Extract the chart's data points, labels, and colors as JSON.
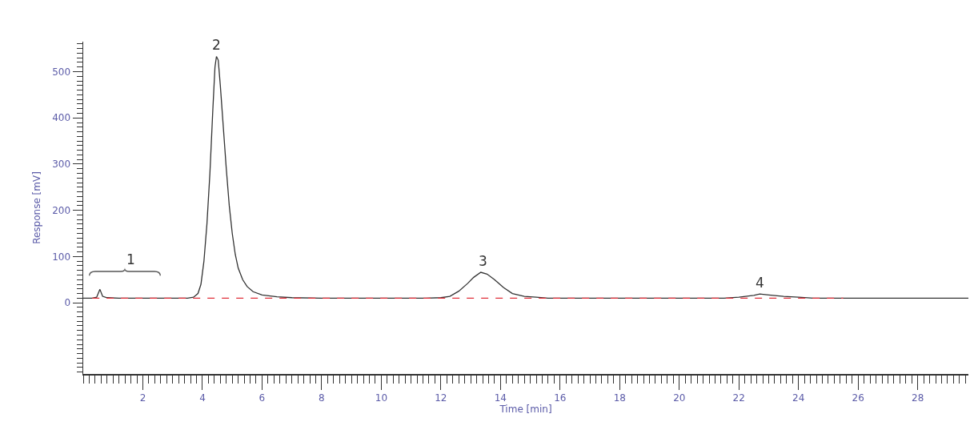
{
  "chart_data": {
    "type": "line",
    "xlabel": "Time [min]",
    "ylabel": "Response [mV]",
    "xlim": [
      0,
      29.7
    ],
    "ylim": [
      -154,
      565
    ],
    "xticks": [
      2,
      4,
      6,
      8,
      10,
      12,
      14,
      16,
      18,
      20,
      22,
      24,
      26,
      28
    ],
    "yticks": [
      0,
      100,
      200,
      300,
      400,
      500
    ],
    "marker": "none",
    "series": [
      {
        "color": "#333333",
        "line_style": "solid",
        "x": [
          0,
          0.3,
          0.45,
          0.56,
          0.65,
          0.8,
          1.2,
          3.0,
          3.5,
          3.7,
          3.85,
          3.95,
          4.05,
          4.15,
          4.25,
          4.35,
          4.42,
          4.47,
          4.53,
          4.6,
          4.7,
          4.8,
          4.9,
          5.0,
          5.1,
          5.2,
          5.35,
          5.5,
          5.7,
          6.0,
          6.5,
          7.0,
          8.0,
          11.5,
          12.0,
          12.3,
          12.6,
          12.9,
          13.1,
          13.34,
          13.55,
          13.8,
          14.1,
          14.4,
          14.8,
          15.2,
          15.6,
          21.5,
          22.0,
          22.5,
          22.7,
          23.0,
          23.5,
          24.0,
          24.5,
          29.7
        ],
        "values": [
          10,
          10,
          12,
          29,
          14,
          11,
          10,
          10,
          10,
          12,
          20,
          40,
          90,
          170,
          280,
          420,
          510,
          533,
          525,
          470,
          380,
          290,
          210,
          150,
          105,
          75,
          50,
          35,
          24,
          17,
          13,
          11,
          10,
          10,
          11,
          14,
          25,
          42,
          55,
          66,
          62,
          50,
          33,
          20,
          14,
          12,
          10,
          10,
          12,
          16,
          19,
          17,
          14,
          12,
          10,
          10
        ]
      },
      {
        "color": "#e0303a",
        "line_style": "dashed",
        "x": [
          0.3,
          25.5
        ],
        "values": [
          10,
          10
        ]
      }
    ],
    "annotations": [
      "1",
      {
        "text": "2",
        "x": 4.47,
        "y": 533
      },
      {
        "text": "3",
        "x": 13.4,
        "y": 66
      },
      {
        "text": "4",
        "x": 22.7,
        "y": 19
      }
    ]
  }
}
